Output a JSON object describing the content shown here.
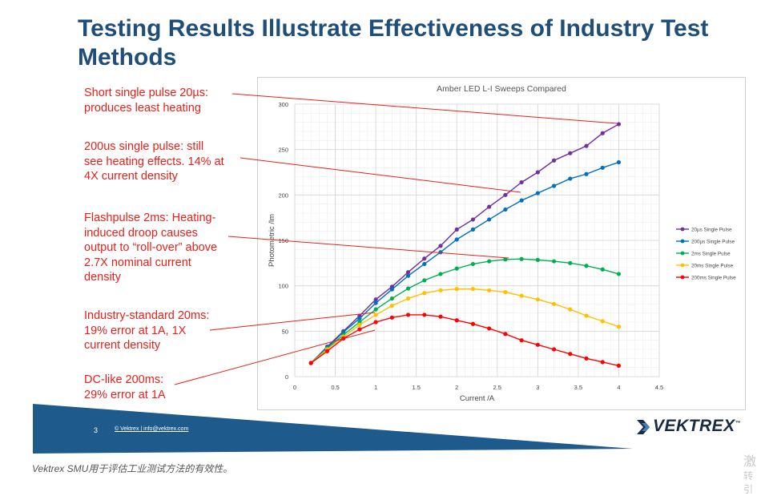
{
  "slide": {
    "title": "Testing Results Illustrate Effectiveness of Industry Test Methods",
    "annotations": [
      "Short single pulse 20µs:\nproduces least heating",
      "200us single pulse: still\nsee heating effects. 14% at\n4X current density",
      "Flashpulse 2ms: Heating-\ninduced droop causes\noutput to “roll-over” above\n2.7X nominal current\ndensity",
      "Industry-standard 20ms:\n19% error at 1A, 1X\ncurrent density",
      "DC-like 200ms:\n29% error at 1A"
    ],
    "page_number": "3",
    "copyright": "© Vektrex | info@vektrex.com",
    "logo_text": "VEKTREX",
    "logo_tm": "™",
    "caption": "Vektrex SMU用于评估工业测试方法的有效性。",
    "watermark_1": "激",
    "watermark_2": "转引",
    "colors": {
      "title": "#1f4e79",
      "annotation": "#e8201a",
      "footer": "#1e5a8c"
    }
  },
  "chart_data": {
    "type": "line",
    "title": "Amber LED L-I Sweeps Compared",
    "xlabel": "Current /A",
    "ylabel": "Photometric /lm",
    "xlim": [
      0,
      4.5
    ],
    "ylim": [
      0,
      300
    ],
    "xticks": [
      "0",
      "0.5",
      "1",
      "1.5",
      "2",
      "2.5",
      "3",
      "3.5",
      "4",
      "4.5"
    ],
    "yticks": [
      "0",
      "50",
      "100",
      "150",
      "200",
      "250",
      "300"
    ],
    "grid": true,
    "legend_position": "right",
    "x": [
      0.2,
      0.4,
      0.6,
      0.8,
      1.0,
      1.2,
      1.4,
      1.6,
      1.8,
      2.0,
      2.2,
      2.4,
      2.6,
      2.8,
      3.0,
      3.2,
      3.4,
      3.6,
      3.8,
      4.0
    ],
    "series": [
      {
        "name": "20µs Single Pulse",
        "color": "#7030a0",
        "values": [
          15,
          33,
          50,
          67,
          85,
          99,
          115,
          130,
          144,
          162,
          173,
          187,
          200,
          214,
          225,
          238,
          246,
          254,
          268,
          278
        ]
      },
      {
        "name": "200µs Single Pulse",
        "color": "#0070c0",
        "values": [
          15,
          32,
          49,
          64,
          81,
          96,
          111,
          124,
          137,
          151,
          162,
          173,
          184,
          194,
          202,
          210,
          218,
          223,
          230,
          236
        ]
      },
      {
        "name": "2ms Single Pulse",
        "color": "#00b050",
        "values": [
          15,
          31,
          46,
          60,
          74,
          86,
          97,
          106,
          113,
          119,
          124,
          127,
          129,
          129.5,
          128.5,
          127,
          125,
          122,
          118,
          113
        ]
      },
      {
        "name": "20ms Single Pulse",
        "color": "#ffc000",
        "values": [
          15,
          30,
          44,
          57,
          68,
          78,
          86,
          92,
          95,
          96.5,
          96.5,
          95,
          93,
          89,
          85,
          80,
          74,
          67,
          61,
          55
        ]
      },
      {
        "name": "200ms Single Pulse",
        "color": "#ff0000",
        "values": [
          15,
          28,
          42,
          52,
          60,
          65,
          68,
          68,
          66,
          62,
          58,
          53,
          47,
          40,
          35,
          30,
          25,
          20,
          16,
          12
        ]
      }
    ]
  }
}
